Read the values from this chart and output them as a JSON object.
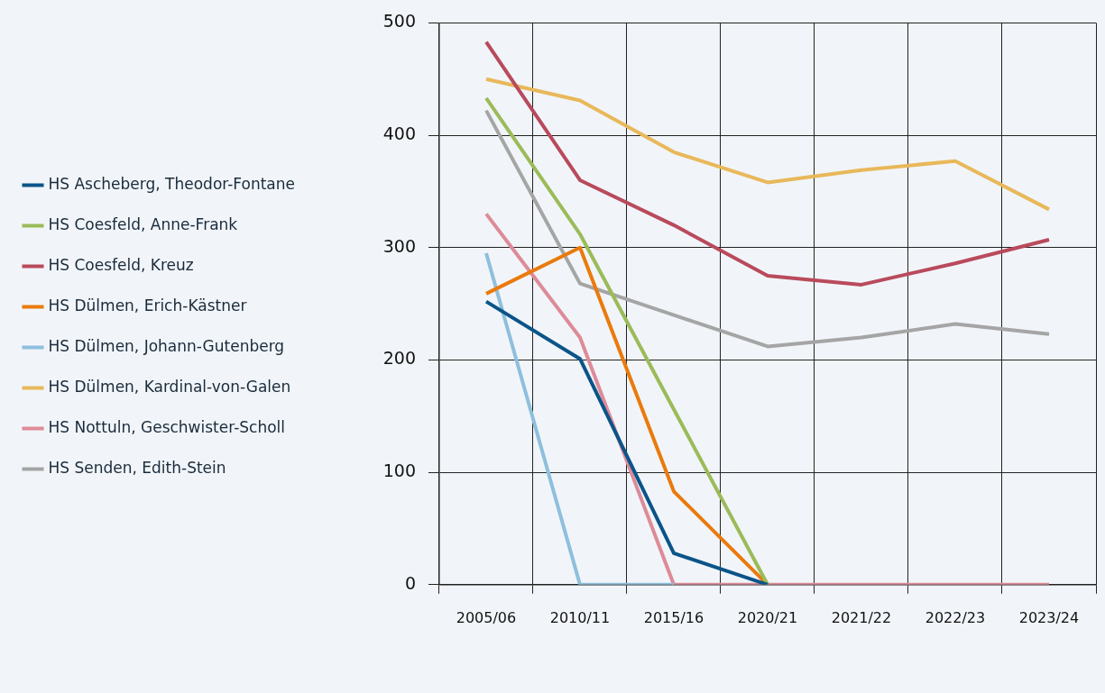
{
  "chart_data": {
    "type": "line",
    "categories": [
      "2005/06",
      "2010/11",
      "2015/16",
      "2020/21",
      "2021/22",
      "2022/23",
      "2023/24"
    ],
    "series": [
      {
        "name": "HS Ascheberg, Theodor-Fontane",
        "color": "#0b5489",
        "values": [
          252,
          201,
          28,
          0,
          null,
          null,
          null
        ]
      },
      {
        "name": "HS Coesfeld, Anne-Frank",
        "color": "#9bbb59",
        "values": [
          433,
          312,
          156,
          0,
          null,
          null,
          null
        ]
      },
      {
        "name": "HS Coesfeld, Kreuz",
        "color": "#b94a5c",
        "values": [
          483,
          360,
          320,
          275,
          267,
          286,
          307
        ]
      },
      {
        "name": "HS Dülmen, Erich-Kästner",
        "color": "#ea7a0c",
        "values": [
          259,
          300,
          83,
          0,
          null,
          null,
          null
        ]
      },
      {
        "name": "HS Dülmen, Johann-Gutenberg",
        "color": "#8fbfdc",
        "values": [
          295,
          0,
          0,
          null,
          null,
          null,
          null
        ]
      },
      {
        "name": "HS Dülmen, Kardinal-von-Galen",
        "color": "#e8b85a",
        "values": [
          450,
          431,
          385,
          358,
          369,
          377,
          334
        ]
      },
      {
        "name": "HS Nottuln, Geschwister-Scholl",
        "color": "#dd8b98",
        "values": [
          330,
          220,
          0,
          0,
          0,
          0,
          0
        ]
      },
      {
        "name": "HS Senden, Edith-Stein",
        "color": "#a5a5a5",
        "values": [
          422,
          268,
          240,
          212,
          220,
          232,
          223
        ]
      }
    ],
    "ylim": [
      0,
      500
    ],
    "yticks": [
      0,
      100,
      200,
      300,
      400,
      500
    ],
    "grid": true,
    "legend": "left"
  }
}
